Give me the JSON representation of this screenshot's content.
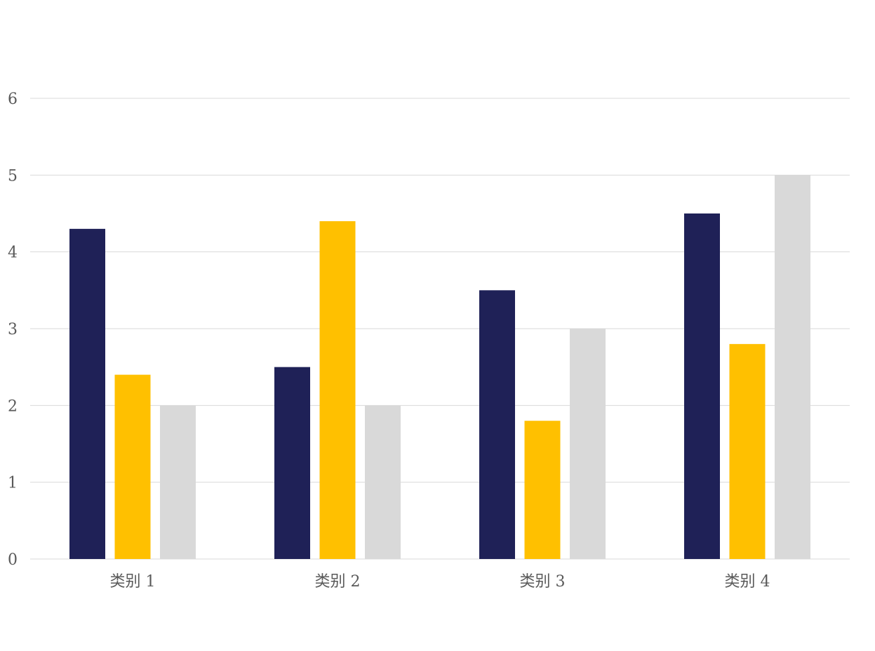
{
  "chart_data": {
    "type": "bar",
    "title": "",
    "xlabel": "",
    "ylabel": "",
    "categories": [
      "类别 1",
      "类别 2",
      "类别 3",
      "类别 4"
    ],
    "series": [
      {
        "values": [
          4.3,
          2.5,
          3.5,
          4.5
        ],
        "color": "#1f2157"
      },
      {
        "values": [
          2.4,
          4.4,
          1.8,
          2.8
        ],
        "color": "#ffc000"
      },
      {
        "values": [
          2.0,
          2.0,
          3.0,
          5.0
        ],
        "color": "#d9d9d9"
      }
    ],
    "ylim": [
      0,
      6
    ],
    "yticks": [
      0,
      1,
      2,
      3,
      4,
      5,
      6
    ],
    "grid": true,
    "legend": "none"
  }
}
